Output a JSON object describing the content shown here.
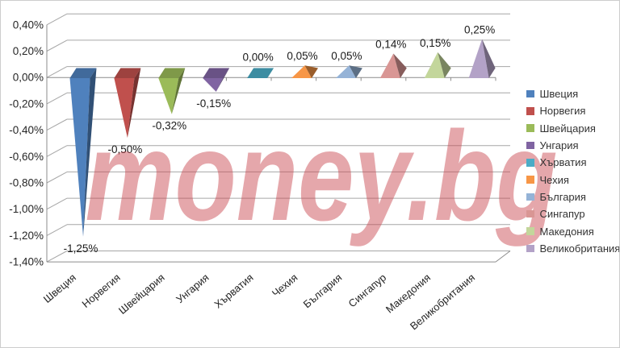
{
  "chart_data": {
    "type": "bar",
    "shape_hint": "3d-pyramid-columns",
    "title": "",
    "xlabel": "",
    "ylabel": "",
    "watermark": "money.bg",
    "grid": true,
    "legend_position": "right",
    "ylim": [
      -1.4,
      0.4
    ],
    "categories": [
      "Швеция",
      "Норвегия",
      "Швейцария",
      "Унгария",
      "Хърватия",
      "Чехия",
      "България",
      "Сингапур",
      "Македония",
      "Великобритания"
    ],
    "values": [
      -1.25,
      -0.5,
      -0.32,
      -0.15,
      0.0,
      0.05,
      0.05,
      0.14,
      0.15,
      0.25
    ],
    "value_labels": [
      "-1,25%",
      "-0,50%",
      "-0,32%",
      "-0,15%",
      "0,00%",
      "0,05%",
      "0,05%",
      "0,14%",
      "0,15%",
      "0,25%"
    ],
    "yticks": {
      "labels": [
        "0,40%",
        "0,20%",
        "0,00%",
        "-0,20%",
        "-0,40%",
        "-0,60%",
        "-0,80%",
        "-1,00%",
        "-1,20%",
        "-1,40%"
      ],
      "values": [
        0.4,
        0.2,
        0.0,
        -0.2,
        -0.4,
        -0.6,
        -0.8,
        -1.0,
        -1.2,
        -1.4
      ]
    },
    "legend": [
      {
        "label": "Швеция",
        "color": "#4F81BD"
      },
      {
        "label": "Норвегия",
        "color": "#C0504D"
      },
      {
        "label": "Швейцария",
        "color": "#9BBB59"
      },
      {
        "label": "Унгария",
        "color": "#8064A2"
      },
      {
        "label": "Хърватия",
        "color": "#4BACC6"
      },
      {
        "label": "Чехия",
        "color": "#F79646"
      },
      {
        "label": "България",
        "color": "#95B3D7"
      },
      {
        "label": "Сингапур",
        "color": "#D99694"
      },
      {
        "label": "Македония",
        "color": "#C3D69B"
      },
      {
        "label": "Великобритания",
        "color": "#B3A2C7"
      }
    ],
    "colors": {
      "gridline": "#a6a6a6",
      "axis": "#8c8c8c",
      "label_text": "#262626"
    }
  }
}
